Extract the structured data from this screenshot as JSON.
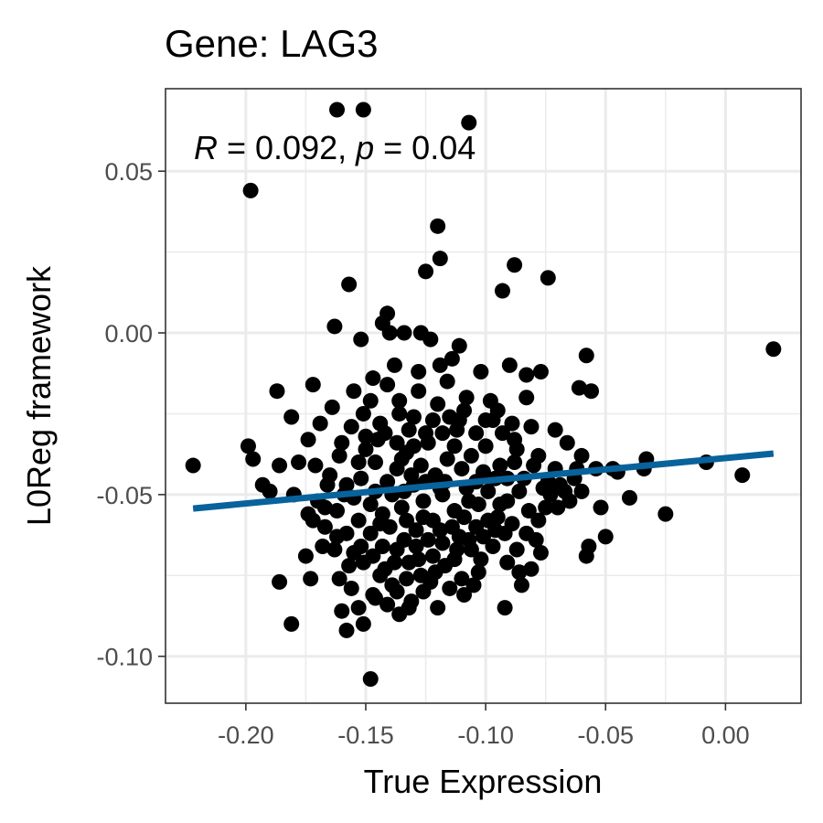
{
  "chart_data": {
    "type": "scatter",
    "title": "Gene: LAG3",
    "xlabel": "True Expression",
    "ylabel": "L0Reg framework",
    "xlim": [
      -0.2335,
      0.0315
    ],
    "ylim": [
      -0.1145,
      0.0755
    ],
    "x_ticks": [
      -0.2,
      -0.15,
      -0.1,
      -0.05,
      0.0
    ],
    "x_tick_labels": [
      "-0.20",
      "-0.15",
      "-0.10",
      "-0.05",
      "0.00"
    ],
    "y_ticks": [
      -0.1,
      -0.05,
      0.0,
      0.05
    ],
    "y_tick_labels": [
      "-0.10",
      "-0.05",
      "0.00",
      "0.05"
    ],
    "grid": true,
    "annotation": {
      "r_symbol": "R",
      "r_value": " = 0.092, ",
      "p_symbol": "p",
      "p_value": " = 0.04"
    },
    "colors": {
      "points": "#000000",
      "fit_line": "#08629b",
      "panel_border": "#333333",
      "grid": "#ebebeb"
    },
    "fit_line": {
      "x": [
        -0.222,
        0.02
      ],
      "y": [
        -0.0543,
        -0.0373
      ]
    },
    "points": [
      [
        -0.162,
        0.069
      ],
      [
        -0.151,
        0.069
      ],
      [
        -0.107,
        0.065
      ],
      [
        -0.198,
        0.044
      ],
      [
        -0.12,
        0.033
      ],
      [
        -0.119,
        0.023
      ],
      [
        -0.125,
        0.019
      ],
      [
        -0.088,
        0.021
      ],
      [
        -0.093,
        0.013
      ],
      [
        -0.074,
        0.017
      ],
      [
        -0.157,
        0.015
      ],
      [
        -0.163,
        0.002
      ],
      [
        -0.152,
        -0.002
      ],
      [
        -0.141,
        0.006
      ],
      [
        -0.143,
        0.003
      ],
      [
        -0.14,
        0.0
      ],
      [
        -0.134,
        0.0
      ],
      [
        -0.127,
        0.0
      ],
      [
        -0.123,
        -0.002
      ],
      [
        -0.111,
        -0.004
      ],
      [
        -0.114,
        -0.008
      ],
      [
        -0.119,
        -0.01
      ],
      [
        -0.102,
        -0.012
      ],
      [
        -0.09,
        -0.01
      ],
      [
        -0.083,
        -0.013
      ],
      [
        -0.077,
        -0.012
      ],
      [
        -0.058,
        -0.007
      ],
      [
        -0.061,
        -0.017
      ],
      [
        -0.056,
        -0.018
      ],
      [
        -0.083,
        -0.02
      ],
      [
        -0.098,
        -0.021
      ],
      [
        -0.108,
        -0.02
      ],
      [
        -0.116,
        -0.015
      ],
      [
        -0.128,
        -0.012
      ],
      [
        -0.138,
        -0.01
      ],
      [
        -0.147,
        -0.014
      ],
      [
        -0.155,
        -0.018
      ],
      [
        -0.164,
        -0.023
      ],
      [
        -0.172,
        -0.016
      ],
      [
        -0.187,
        -0.018
      ],
      [
        -0.181,
        -0.026
      ],
      [
        -0.169,
        -0.028
      ],
      [
        -0.174,
        -0.033
      ],
      [
        -0.16,
        -0.034
      ],
      [
        -0.15,
        -0.032
      ],
      [
        -0.144,
        -0.028
      ],
      [
        -0.132,
        -0.03
      ],
      [
        -0.122,
        -0.027
      ],
      [
        -0.112,
        -0.03
      ],
      [
        -0.104,
        -0.031
      ],
      [
        -0.097,
        -0.027
      ],
      [
        -0.089,
        -0.028
      ],
      [
        -0.081,
        -0.029
      ],
      [
        -0.071,
        -0.03
      ],
      [
        -0.066,
        -0.034
      ],
      [
        -0.06,
        -0.038
      ],
      [
        -0.054,
        -0.042
      ],
      [
        -0.045,
        -0.043
      ],
      [
        -0.033,
        -0.039
      ],
      [
        -0.034,
        -0.042
      ],
      [
        -0.008,
        -0.04
      ],
      [
        0.007,
        -0.044
      ],
      [
        0.02,
        -0.005
      ],
      [
        -0.025,
        -0.056
      ],
      [
        -0.04,
        -0.051
      ],
      [
        -0.052,
        -0.054
      ],
      [
        -0.05,
        -0.063
      ],
      [
        -0.057,
        -0.066
      ],
      [
        -0.058,
        -0.069
      ],
      [
        -0.074,
        -0.046
      ],
      [
        -0.078,
        -0.038
      ],
      [
        -0.087,
        -0.036
      ],
      [
        -0.094,
        -0.041
      ],
      [
        -0.1,
        -0.035
      ],
      [
        -0.106,
        -0.038
      ],
      [
        -0.11,
        -0.042
      ],
      [
        -0.116,
        -0.039
      ],
      [
        -0.121,
        -0.044
      ],
      [
        -0.127,
        -0.041
      ],
      [
        -0.133,
        -0.037
      ],
      [
        -0.137,
        -0.042
      ],
      [
        -0.141,
        -0.046
      ],
      [
        -0.146,
        -0.04
      ],
      [
        -0.152,
        -0.045
      ],
      [
        -0.158,
        -0.047
      ],
      [
        -0.165,
        -0.044
      ],
      [
        -0.171,
        -0.041
      ],
      [
        -0.178,
        -0.04
      ],
      [
        -0.186,
        -0.041
      ],
      [
        -0.193,
        -0.047
      ],
      [
        -0.197,
        -0.039
      ],
      [
        -0.199,
        -0.035
      ],
      [
        -0.222,
        -0.041
      ],
      [
        -0.19,
        -0.049
      ],
      [
        -0.18,
        -0.05
      ],
      [
        -0.17,
        -0.052
      ],
      [
        -0.162,
        -0.055
      ],
      [
        -0.155,
        -0.051
      ],
      [
        -0.148,
        -0.053
      ],
      [
        -0.143,
        -0.056
      ],
      [
        -0.139,
        -0.05
      ],
      [
        -0.135,
        -0.054
      ],
      [
        -0.13,
        -0.047
      ],
      [
        -0.126,
        -0.052
      ],
      [
        -0.122,
        -0.058
      ],
      [
        -0.118,
        -0.05
      ],
      [
        -0.113,
        -0.055
      ],
      [
        -0.108,
        -0.048
      ],
      [
        -0.103,
        -0.053
      ],
      [
        -0.099,
        -0.049
      ],
      [
        -0.095,
        -0.057
      ],
      [
        -0.091,
        -0.052
      ],
      [
        -0.086,
        -0.049
      ],
      [
        -0.082,
        -0.055
      ],
      [
        -0.078,
        -0.058
      ],
      [
        -0.073,
        -0.05
      ],
      [
        -0.069,
        -0.047
      ],
      [
        -0.065,
        -0.052
      ],
      [
        -0.092,
        -0.062
      ],
      [
        -0.097,
        -0.066
      ],
      [
        -0.102,
        -0.07
      ],
      [
        -0.107,
        -0.064
      ],
      [
        -0.112,
        -0.067
      ],
      [
        -0.117,
        -0.072
      ],
      [
        -0.122,
        -0.069
      ],
      [
        -0.127,
        -0.075
      ],
      [
        -0.132,
        -0.071
      ],
      [
        -0.137,
        -0.067
      ],
      [
        -0.142,
        -0.073
      ],
      [
        -0.147,
        -0.069
      ],
      [
        -0.152,
        -0.066
      ],
      [
        -0.157,
        -0.072
      ],
      [
        -0.162,
        -0.063
      ],
      [
        -0.167,
        -0.06
      ],
      [
        -0.172,
        -0.058
      ],
      [
        -0.168,
        -0.066
      ],
      [
        -0.175,
        -0.069
      ],
      [
        -0.173,
        -0.076
      ],
      [
        -0.186,
        -0.077
      ],
      [
        -0.181,
        -0.09
      ],
      [
        -0.158,
        -0.092
      ],
      [
        -0.151,
        -0.09
      ],
      [
        -0.148,
        -0.107
      ],
      [
        -0.153,
        -0.085
      ],
      [
        -0.147,
        -0.081
      ],
      [
        -0.141,
        -0.084
      ],
      [
        -0.136,
        -0.087
      ],
      [
        -0.131,
        -0.083
      ],
      [
        -0.126,
        -0.08
      ],
      [
        -0.12,
        -0.085
      ],
      [
        -0.115,
        -0.079
      ],
      [
        -0.11,
        -0.076
      ],
      [
        -0.105,
        -0.078
      ],
      [
        -0.092,
        -0.085
      ],
      [
        -0.085,
        -0.078
      ],
      [
        -0.081,
        -0.073
      ],
      [
        -0.077,
        -0.068
      ],
      [
        -0.079,
        -0.064
      ],
      [
        -0.087,
        -0.067
      ],
      [
        -0.139,
        -0.078
      ],
      [
        -0.144,
        -0.075
      ],
      [
        -0.156,
        -0.079
      ],
      [
        -0.16,
        -0.086
      ],
      [
        -0.134,
        -0.064
      ],
      [
        -0.129,
        -0.061
      ],
      [
        -0.124,
        -0.064
      ],
      [
        -0.119,
        -0.061
      ],
      [
        -0.114,
        -0.06
      ],
      [
        -0.109,
        -0.057
      ],
      [
        -0.104,
        -0.06
      ],
      [
        -0.099,
        -0.058
      ],
      [
        -0.117,
        -0.046
      ],
      [
        -0.124,
        -0.034
      ],
      [
        -0.13,
        -0.026
      ],
      [
        -0.136,
        -0.021
      ],
      [
        -0.141,
        -0.016
      ],
      [
        -0.148,
        -0.021
      ],
      [
        -0.151,
        -0.025
      ],
      [
        -0.156,
        -0.029
      ],
      [
        -0.161,
        -0.038
      ],
      [
        -0.15,
        -0.036
      ],
      [
        -0.145,
        -0.033
      ],
      [
        -0.128,
        -0.018
      ],
      [
        -0.12,
        -0.022
      ],
      [
        -0.115,
        -0.026
      ],
      [
        -0.109,
        -0.024
      ],
      [
        -0.095,
        -0.024
      ],
      [
        -0.093,
        -0.031
      ],
      [
        -0.088,
        -0.033
      ],
      [
        -0.08,
        -0.041
      ],
      [
        -0.071,
        -0.042
      ],
      [
        -0.063,
        -0.045
      ],
      [
        -0.06,
        -0.049
      ],
      [
        -0.084,
        -0.045
      ],
      [
        -0.096,
        -0.045
      ],
      [
        -0.13,
        -0.035
      ],
      [
        -0.135,
        -0.039
      ],
      [
        -0.153,
        -0.04
      ],
      [
        -0.14,
        -0.06
      ],
      [
        -0.133,
        -0.058
      ],
      [
        -0.126,
        -0.057
      ],
      [
        -0.111,
        -0.063
      ],
      [
        -0.106,
        -0.067
      ],
      [
        -0.101,
        -0.063
      ],
      [
        -0.096,
        -0.061
      ],
      [
        -0.091,
        -0.071
      ],
      [
        -0.086,
        -0.074
      ],
      [
        -0.118,
        -0.065
      ],
      [
        -0.123,
        -0.077
      ],
      [
        -0.128,
        -0.07
      ],
      [
        -0.133,
        -0.076
      ],
      [
        -0.138,
        -0.071
      ],
      [
        -0.143,
        -0.066
      ],
      [
        -0.148,
        -0.062
      ],
      [
        -0.153,
        -0.058
      ],
      [
        -0.158,
        -0.062
      ],
      [
        -0.163,
        -0.067
      ],
      [
        -0.167,
        -0.054
      ],
      [
        -0.159,
        -0.05
      ],
      [
        -0.146,
        -0.049
      ],
      [
        -0.131,
        -0.044
      ],
      [
        -0.119,
        -0.048
      ],
      [
        -0.107,
        -0.052
      ],
      [
        -0.094,
        -0.053
      ],
      [
        -0.089,
        -0.059
      ],
      [
        -0.083,
        -0.062
      ],
      [
        -0.075,
        -0.054
      ],
      [
        -0.067,
        -0.049
      ],
      [
        -0.062,
        -0.042
      ],
      [
        -0.047,
        -0.042
      ],
      [
        -0.174,
        -0.056
      ],
      [
        -0.166,
        -0.047
      ],
      [
        -0.142,
        -0.031
      ],
      [
        -0.137,
        -0.034
      ],
      [
        -0.125,
        -0.031
      ],
      [
        -0.113,
        -0.035
      ],
      [
        -0.101,
        -0.043
      ],
      [
        -0.091,
        -0.045
      ],
      [
        -0.076,
        -0.048
      ],
      [
        -0.07,
        -0.054
      ],
      [
        -0.146,
        -0.082
      ],
      [
        -0.137,
        -0.08
      ],
      [
        -0.132,
        -0.085
      ],
      [
        -0.121,
        -0.074
      ],
      [
        -0.113,
        -0.07
      ],
      [
        -0.103,
        -0.074
      ],
      [
        -0.109,
        -0.081
      ],
      [
        -0.129,
        -0.066
      ],
      [
        -0.144,
        -0.059
      ],
      [
        -0.151,
        -0.071
      ],
      [
        -0.161,
        -0.076
      ],
      [
        -0.155,
        -0.068
      ],
      [
        -0.134,
        -0.049
      ],
      [
        -0.125,
        -0.046
      ],
      [
        -0.104,
        -0.046
      ],
      [
        -0.088,
        -0.04
      ],
      [
        -0.1,
        -0.027
      ],
      [
        -0.111,
        -0.027
      ],
      [
        -0.118,
        -0.031
      ],
      [
        -0.136,
        -0.025
      ]
    ]
  }
}
